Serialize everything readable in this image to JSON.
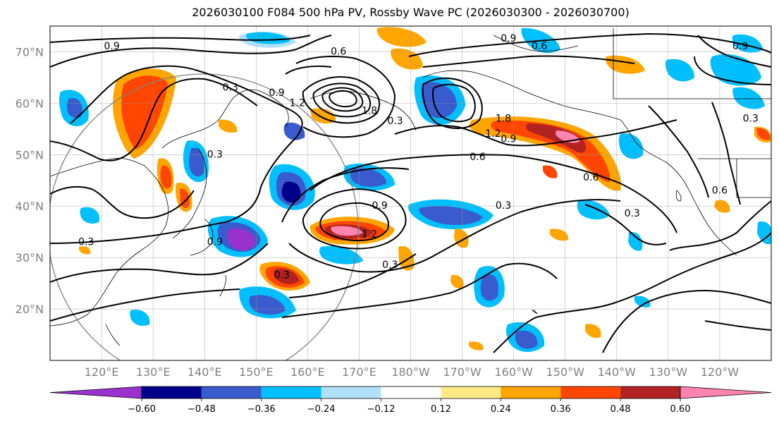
{
  "title": "2026030100 F084 500 hPa PV, Rossby Wave PC (2026030300 - 2026030700)",
  "map": {
    "lon_range": [
      110,
      250
    ],
    "lat_range": [
      10,
      75
    ],
    "lat_ticks": [
      {
        "lat": 20,
        "label": "20°N"
      },
      {
        "lat": 30,
        "label": "30°N"
      },
      {
        "lat": 40,
        "label": "40°N"
      },
      {
        "lat": 50,
        "label": "50°N"
      },
      {
        "lat": 60,
        "label": "60°N"
      },
      {
        "lat": 70,
        "label": "70°N"
      }
    ],
    "lon_ticks": [
      {
        "lon": 120,
        "label": "120°E"
      },
      {
        "lon": 130,
        "label": "130°E"
      },
      {
        "lon": 140,
        "label": "140°E"
      },
      {
        "lon": 150,
        "label": "150°E"
      },
      {
        "lon": 160,
        "label": "160°E"
      },
      {
        "lon": 170,
        "label": "170°E"
      },
      {
        "lon": 180,
        "label": "180°W"
      },
      {
        "lon": 190,
        "label": "170°W"
      },
      {
        "lon": 200,
        "label": "160°W"
      },
      {
        "lon": 210,
        "label": "150°W"
      },
      {
        "lon": 220,
        "label": "140°W"
      },
      {
        "lon": 230,
        "label": "130°W"
      },
      {
        "lon": 240,
        "label": "120°W"
      }
    ],
    "contour_labels": [
      {
        "lon": 122,
        "lat": 71,
        "text": "0.9"
      },
      {
        "lon": 145,
        "lat": 63,
        "text": "0.3"
      },
      {
        "lon": 154,
        "lat": 62,
        "text": "0.9"
      },
      {
        "lon": 158,
        "lat": 60,
        "text": "1.2"
      },
      {
        "lon": 172,
        "lat": 58.5,
        "text": "1.8"
      },
      {
        "lon": 166,
        "lat": 70,
        "text": "0.6"
      },
      {
        "lon": 177,
        "lat": 56.5,
        "text": "0.3"
      },
      {
        "lon": 199,
        "lat": 72.5,
        "text": "0.9"
      },
      {
        "lon": 205,
        "lat": 71,
        "text": "0.6"
      },
      {
        "lon": 198,
        "lat": 57,
        "text": "1.8"
      },
      {
        "lon": 196,
        "lat": 54,
        "text": "1.2"
      },
      {
        "lon": 199,
        "lat": 53,
        "text": "0.9"
      },
      {
        "lon": 193,
        "lat": 49.5,
        "text": "0.6"
      },
      {
        "lon": 215,
        "lat": 45.5,
        "text": "0.6"
      },
      {
        "lon": 198,
        "lat": 40,
        "text": "0.3"
      },
      {
        "lon": 174,
        "lat": 40,
        "text": "0.9"
      },
      {
        "lon": 172,
        "lat": 34.5,
        "text": "1.2"
      },
      {
        "lon": 176,
        "lat": 28.5,
        "text": "0.3"
      },
      {
        "lon": 142,
        "lat": 33,
        "text": "0.9"
      },
      {
        "lon": 117,
        "lat": 33,
        "text": "0.3"
      },
      {
        "lon": 142,
        "lat": 50,
        "text": "0.3"
      },
      {
        "lon": 155,
        "lat": 26.5,
        "text": "0.3"
      },
      {
        "lon": 223,
        "lat": 38.5,
        "text": "0.3"
      },
      {
        "lon": 244,
        "lat": 71,
        "text": "0.9"
      },
      {
        "lon": 246,
        "lat": 57,
        "text": "0.3"
      },
      {
        "lon": 240,
        "lat": 43,
        "text": "0.6"
      }
    ]
  },
  "colorbar": {
    "colors": [
      "#9932cc",
      "#00008b",
      "#3a5bcd",
      "#00bfff",
      "#b0e0fa",
      "#ffffff",
      "#ffe985",
      "#ffa500",
      "#ff4500",
      "#b22222",
      "#ff85b0"
    ],
    "tick_labels": [
      "−0.60",
      "−0.48",
      "−0.36",
      "−0.24",
      "−0.12",
      "0.12",
      "0.24",
      "0.36",
      "0.48",
      "0.60"
    ]
  }
}
